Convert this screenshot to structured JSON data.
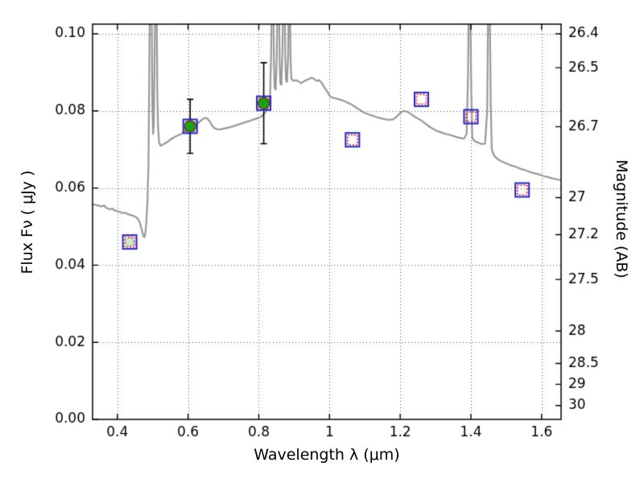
{
  "chart_data": {
    "type": "line",
    "title": "",
    "xlabel": "Wavelength  λ (μm)",
    "ylabel": "Flux  Fν  ( μJy )",
    "ylabel_right": "Magnitude (AB)",
    "xlim": [
      0.33,
      1.655
    ],
    "ylim": [
      0.0,
      0.1025
    ],
    "grid": true,
    "x_ticks": [
      0.4,
      0.6,
      0.8,
      1.0,
      1.2,
      1.4,
      1.6
    ],
    "x_tick_labels": [
      "0.4",
      "0.6",
      "0.8",
      "1",
      "1.2",
      "1.4",
      "1.6"
    ],
    "y_ticks": [
      0.0,
      0.02,
      0.04,
      0.06,
      0.08,
      0.1
    ],
    "y_tick_labels": [
      "0.00",
      "0.02",
      "0.04",
      "0.06",
      "0.08",
      "0.10"
    ],
    "right_ticks": [
      {
        "label": "26.4",
        "flux": 0.1
      },
      {
        "label": "26.5",
        "flux": 0.0912
      },
      {
        "label": "26.7",
        "flux": 0.0759
      },
      {
        "label": "27",
        "flux": 0.0575
      },
      {
        "label": "27.2",
        "flux": 0.0479
      },
      {
        "label": "27.5",
        "flux": 0.0363
      },
      {
        "label": "28",
        "flux": 0.0229
      },
      {
        "label": "28.5",
        "flux": 0.0145
      },
      {
        "label": "29",
        "flux": 0.0091
      },
      {
        "label": "30",
        "flux": 0.0036
      }
    ],
    "spectrum": {
      "name": "model-spectrum",
      "color": "#989898",
      "points": [
        [
          0.33,
          0.0558
        ],
        [
          0.345,
          0.0555
        ],
        [
          0.355,
          0.0552
        ],
        [
          0.362,
          0.0555
        ],
        [
          0.37,
          0.0548
        ],
        [
          0.378,
          0.0545
        ],
        [
          0.385,
          0.0547
        ],
        [
          0.392,
          0.0542
        ],
        [
          0.4,
          0.054
        ],
        [
          0.408,
          0.0538
        ],
        [
          0.415,
          0.0535
        ],
        [
          0.422,
          0.0536
        ],
        [
          0.43,
          0.0532
        ],
        [
          0.438,
          0.053
        ],
        [
          0.445,
          0.0528
        ],
        [
          0.452,
          0.0525
        ],
        [
          0.458,
          0.052
        ],
        [
          0.463,
          0.0512
        ],
        [
          0.467,
          0.05
        ],
        [
          0.47,
          0.0488
        ],
        [
          0.473,
          0.0478
        ],
        [
          0.476,
          0.0472
        ],
        [
          0.479,
          0.048
        ],
        [
          0.482,
          0.051
        ],
        [
          0.485,
          0.056
        ],
        [
          0.488,
          0.066
        ],
        [
          0.49,
          0.085
        ],
        [
          0.492,
          0.11
        ],
        [
          0.497,
          0.11
        ],
        [
          0.499,
          0.082
        ],
        [
          0.501,
          0.074
        ],
        [
          0.503,
          0.076
        ],
        [
          0.505,
          0.09
        ],
        [
          0.507,
          0.11
        ],
        [
          0.511,
          0.11
        ],
        [
          0.513,
          0.086
        ],
        [
          0.515,
          0.076
        ],
        [
          0.518,
          0.072
        ],
        [
          0.522,
          0.071
        ],
        [
          0.528,
          0.0712
        ],
        [
          0.535,
          0.0716
        ],
        [
          0.542,
          0.072
        ],
        [
          0.55,
          0.0726
        ],
        [
          0.558,
          0.073
        ],
        [
          0.565,
          0.0734
        ],
        [
          0.572,
          0.0737
        ],
        [
          0.58,
          0.074
        ],
        [
          0.59,
          0.0745
        ],
        [
          0.6,
          0.075
        ],
        [
          0.61,
          0.0756
        ],
        [
          0.62,
          0.0762
        ],
        [
          0.63,
          0.077
        ],
        [
          0.64,
          0.0778
        ],
        [
          0.648,
          0.0782
        ],
        [
          0.655,
          0.078
        ],
        [
          0.662,
          0.0772
        ],
        [
          0.668,
          0.0762
        ],
        [
          0.675,
          0.0755
        ],
        [
          0.682,
          0.0752
        ],
        [
          0.69,
          0.0752
        ],
        [
          0.7,
          0.0754
        ],
        [
          0.71,
          0.0756
        ],
        [
          0.72,
          0.0758
        ],
        [
          0.73,
          0.0761
        ],
        [
          0.74,
          0.0764
        ],
        [
          0.75,
          0.0767
        ],
        [
          0.76,
          0.077
        ],
        [
          0.77,
          0.0773
        ],
        [
          0.78,
          0.0776
        ],
        [
          0.79,
          0.0779
        ],
        [
          0.8,
          0.0782
        ],
        [
          0.808,
          0.0786
        ],
        [
          0.815,
          0.0792
        ],
        [
          0.822,
          0.08
        ],
        [
          0.828,
          0.0815
        ],
        [
          0.832,
          0.084
        ],
        [
          0.835,
          0.095
        ],
        [
          0.837,
          0.11
        ],
        [
          0.841,
          0.11
        ],
        [
          0.843,
          0.092
        ],
        [
          0.845,
          0.086
        ],
        [
          0.848,
          0.0855
        ],
        [
          0.851,
          0.095
        ],
        [
          0.853,
          0.11
        ],
        [
          0.857,
          0.11
        ],
        [
          0.859,
          0.093
        ],
        [
          0.861,
          0.087
        ],
        [
          0.864,
          0.0868
        ],
        [
          0.867,
          0.096
        ],
        [
          0.869,
          0.11
        ],
        [
          0.873,
          0.11
        ],
        [
          0.875,
          0.094
        ],
        [
          0.877,
          0.088
        ],
        [
          0.88,
          0.0875
        ],
        [
          0.883,
          0.094
        ],
        [
          0.885,
          0.11
        ],
        [
          0.888,
          0.11
        ],
        [
          0.89,
          0.093
        ],
        [
          0.892,
          0.0885
        ],
        [
          0.895,
          0.088
        ],
        [
          0.9,
          0.0878
        ],
        [
          0.905,
          0.088
        ],
        [
          0.91,
          0.0878
        ],
        [
          0.915,
          0.0875
        ],
        [
          0.92,
          0.0872
        ],
        [
          0.925,
          0.0875
        ],
        [
          0.93,
          0.0878
        ],
        [
          0.935,
          0.088
        ],
        [
          0.94,
          0.0882
        ],
        [
          0.945,
          0.0884
        ],
        [
          0.95,
          0.0886
        ],
        [
          0.955,
          0.0884
        ],
        [
          0.96,
          0.088
        ],
        [
          0.965,
          0.0878
        ],
        [
          0.97,
          0.088
        ],
        [
          0.975,
          0.0876
        ],
        [
          0.98,
          0.087
        ],
        [
          0.985,
          0.0862
        ],
        [
          0.99,
          0.0855
        ],
        [
          0.995,
          0.0848
        ],
        [
          1.0,
          0.084
        ],
        [
          1.005,
          0.0836
        ],
        [
          1.01,
          0.0834
        ],
        [
          1.015,
          0.0833
        ],
        [
          1.02,
          0.0832
        ],
        [
          1.03,
          0.0829
        ],
        [
          1.04,
          0.0826
        ],
        [
          1.05,
          0.0822
        ],
        [
          1.06,
          0.0818
        ],
        [
          1.07,
          0.0812
        ],
        [
          1.08,
          0.0806
        ],
        [
          1.09,
          0.08
        ],
        [
          1.1,
          0.0795
        ],
        [
          1.11,
          0.0791
        ],
        [
          1.12,
          0.0788
        ],
        [
          1.13,
          0.0785
        ],
        [
          1.14,
          0.0782
        ],
        [
          1.15,
          0.078
        ],
        [
          1.16,
          0.0778
        ],
        [
          1.17,
          0.0777
        ],
        [
          1.18,
          0.0778
        ],
        [
          1.19,
          0.0785
        ],
        [
          1.2,
          0.0795
        ],
        [
          1.21,
          0.08
        ],
        [
          1.22,
          0.0798
        ],
        [
          1.23,
          0.0792
        ],
        [
          1.24,
          0.0786
        ],
        [
          1.25,
          0.078
        ],
        [
          1.26,
          0.0775
        ],
        [
          1.27,
          0.0768
        ],
        [
          1.28,
          0.0761
        ],
        [
          1.29,
          0.0755
        ],
        [
          1.3,
          0.075
        ],
        [
          1.31,
          0.0746
        ],
        [
          1.32,
          0.0743
        ],
        [
          1.33,
          0.074
        ],
        [
          1.34,
          0.0738
        ],
        [
          1.35,
          0.0735
        ],
        [
          1.36,
          0.0732
        ],
        [
          1.37,
          0.073
        ],
        [
          1.38,
          0.0728
        ],
        [
          1.388,
          0.074
        ],
        [
          1.392,
          0.09
        ],
        [
          1.394,
          0.11
        ],
        [
          1.398,
          0.11
        ],
        [
          1.401,
          0.085
        ],
        [
          1.404,
          0.073
        ],
        [
          1.41,
          0.0722
        ],
        [
          1.42,
          0.0718
        ],
        [
          1.43,
          0.0714
        ],
        [
          1.44,
          0.0715
        ],
        [
          1.446,
          0.08
        ],
        [
          1.449,
          0.11
        ],
        [
          1.453,
          0.11
        ],
        [
          1.456,
          0.082
        ],
        [
          1.459,
          0.07
        ],
        [
          1.465,
          0.0685
        ],
        [
          1.472,
          0.0678
        ],
        [
          1.48,
          0.0672
        ],
        [
          1.49,
          0.0668
        ],
        [
          1.5,
          0.0664
        ],
        [
          1.51,
          0.066
        ],
        [
          1.52,
          0.0657
        ],
        [
          1.53,
          0.0654
        ],
        [
          1.54,
          0.065
        ],
        [
          1.55,
          0.0647
        ],
        [
          1.56,
          0.0644
        ],
        [
          1.57,
          0.0641
        ],
        [
          1.58,
          0.0638
        ],
        [
          1.59,
          0.0636
        ],
        [
          1.6,
          0.0633
        ],
        [
          1.61,
          0.063
        ],
        [
          1.62,
          0.0628
        ],
        [
          1.63,
          0.0625
        ],
        [
          1.645,
          0.0622
        ],
        [
          1.655,
          0.062
        ]
      ]
    },
    "squares": {
      "name": "model-photometry-squares",
      "outer_color": "#2323c8",
      "inner_color": "#dd2626",
      "outer_size": 17,
      "inner_size": 12,
      "points": [
        {
          "x": 0.435,
          "y": 0.046
        },
        {
          "x": 0.606,
          "y": 0.076
        },
        {
          "x": 0.814,
          "y": 0.082
        },
        {
          "x": 1.065,
          "y": 0.0725
        },
        {
          "x": 1.26,
          "y": 0.083
        },
        {
          "x": 1.4,
          "y": 0.0785
        },
        {
          "x": 1.545,
          "y": 0.0595
        }
      ]
    },
    "circles": {
      "name": "observed-photometry-circles",
      "points": [
        {
          "x": 0.435,
          "y": 0.046,
          "r": 5,
          "fill": "#cdebcd",
          "stroke": "#9fcf9f",
          "yerr": null
        },
        {
          "x": 0.606,
          "y": 0.076,
          "r": 7,
          "fill": "#15a315",
          "stroke": "#0b6b0b",
          "yerr": 0.007
        },
        {
          "x": 0.814,
          "y": 0.082,
          "r": 7,
          "fill": "#15a315",
          "stroke": "#0b6b0b",
          "yerr": 0.0105
        }
      ]
    }
  }
}
